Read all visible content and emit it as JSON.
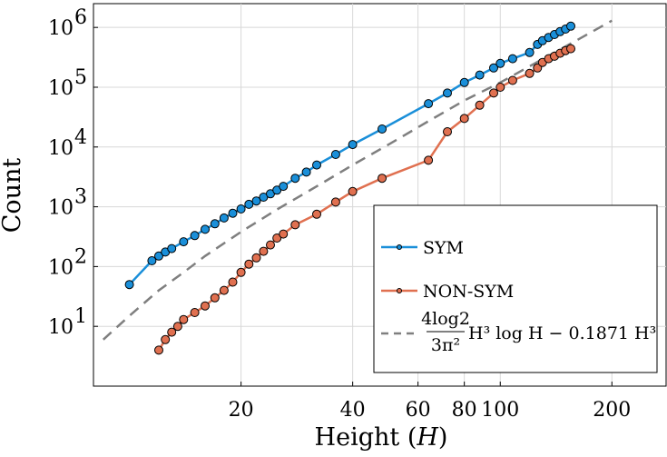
{
  "chart_data": {
    "type": "line",
    "xlabel": "Height",
    "xlabel_var": "H",
    "ylabel": "Count",
    "x_scale": "log",
    "y_scale": "log",
    "xlim": [
      8,
      280
    ],
    "ylim": [
      1.0,
      2500000
    ],
    "grid": true,
    "legend_position": "bottom-right",
    "x_ticks": [
      {
        "value": 20,
        "label": "20"
      },
      {
        "value": 40,
        "label": "40"
      },
      {
        "value": 60,
        "label": "60"
      },
      {
        "value": 80,
        "label": "80"
      },
      {
        "value": 100,
        "label": "100"
      },
      {
        "value": 200,
        "label": "200"
      }
    ],
    "y_ticks": [
      {
        "value": 10,
        "base": "10",
        "exp": "1"
      },
      {
        "value": 100,
        "base": "10",
        "exp": "2"
      },
      {
        "value": 1000,
        "base": "10",
        "exp": "3"
      },
      {
        "value": 10000,
        "base": "10",
        "exp": "4"
      },
      {
        "value": 100000,
        "base": "10",
        "exp": "5"
      },
      {
        "value": 1000000,
        "base": "10",
        "exp": "6"
      }
    ],
    "series": [
      {
        "name": "SYM",
        "color": "#1a8fd9",
        "style": "line-markers",
        "x": [
          10,
          11.5,
          12,
          12.5,
          13,
          14,
          15,
          16,
          17,
          18,
          19,
          20,
          21,
          22,
          23,
          24,
          25,
          26,
          28,
          30,
          32,
          36,
          40,
          48,
          64,
          72,
          80,
          88,
          96,
          100,
          108,
          120,
          126,
          130,
          135,
          140,
          145,
          150,
          155
        ],
        "y": [
          50,
          125,
          150,
          175,
          200,
          260,
          330,
          420,
          520,
          650,
          780,
          920,
          1100,
          1250,
          1450,
          1650,
          1900,
          2200,
          3000,
          3800,
          5000,
          7500,
          11000,
          20000,
          53000,
          80000,
          120000,
          160000,
          210000,
          250000,
          300000,
          380000,
          520000,
          600000,
          680000,
          760000,
          850000,
          940000,
          1050000
        ]
      },
      {
        "name": "NON-SYM",
        "color": "#e07050",
        "style": "line-markers",
        "x": [
          12,
          12.5,
          13,
          13.5,
          14,
          15,
          16,
          17,
          18,
          19,
          20,
          21,
          22,
          23,
          24,
          25,
          26,
          28,
          32,
          36,
          40,
          48,
          64,
          72,
          80,
          88,
          96,
          100,
          108,
          120,
          126,
          130,
          135,
          140,
          145,
          150,
          155
        ],
        "y": [
          4,
          6,
          8,
          10,
          13,
          17,
          22,
          30,
          40,
          55,
          80,
          110,
          140,
          180,
          230,
          300,
          350,
          500,
          750,
          1200,
          1800,
          3000,
          6000,
          18000,
          30000,
          50000,
          80000,
          100000,
          130000,
          170000,
          210000,
          260000,
          300000,
          330000,
          370000,
          410000,
          440000
        ]
      },
      {
        "name": "fit",
        "label_numerator": "4log2",
        "label_denominator": "3π²",
        "label_rest": "H³ log H − 0.1871 H³",
        "color": "#7f7f7f",
        "style": "dashed",
        "x": [
          8.5,
          10,
          11,
          12,
          14,
          16,
          20,
          25,
          32,
          40,
          50,
          64,
          80,
          100,
          128,
          160,
          200
        ],
        "y": [
          6,
          15,
          25,
          40,
          80,
          150,
          380,
          900,
          2200,
          5000,
          11000,
          27000,
          60000,
          120000,
          280000,
          600000,
          1300000
        ]
      }
    ]
  }
}
